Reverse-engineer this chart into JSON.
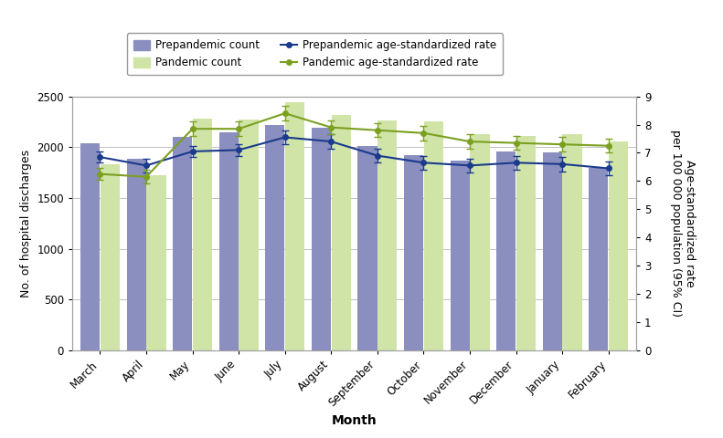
{
  "months": [
    "March",
    "April",
    "May",
    "June",
    "July",
    "August",
    "September",
    "October",
    "November",
    "December",
    "January",
    "February"
  ],
  "prepandemic_count": [
    2040,
    1890,
    2105,
    2145,
    2215,
    2195,
    2010,
    1920,
    1870,
    1960,
    1950,
    1800
  ],
  "pandemic_count": [
    1830,
    1720,
    2280,
    2270,
    2440,
    2320,
    2260,
    2250,
    2130,
    2110,
    2130,
    2060
  ],
  "prepandemic_rate": [
    6.85,
    6.55,
    7.05,
    7.1,
    7.55,
    7.4,
    6.9,
    6.65,
    6.55,
    6.65,
    6.6,
    6.45
  ],
  "prepandemic_rate_lower": [
    6.65,
    6.3,
    6.85,
    6.9,
    7.3,
    7.15,
    6.65,
    6.4,
    6.3,
    6.4,
    6.35,
    6.2
  ],
  "prepandemic_rate_upper": [
    7.05,
    6.8,
    7.25,
    7.3,
    7.8,
    7.65,
    7.15,
    6.9,
    6.8,
    6.9,
    6.85,
    6.7
  ],
  "pandemic_rate": [
    6.25,
    6.15,
    7.85,
    7.85,
    8.4,
    7.9,
    7.8,
    7.7,
    7.4,
    7.35,
    7.3,
    7.25
  ],
  "pandemic_rate_lower": [
    6.05,
    5.9,
    7.6,
    7.6,
    8.15,
    7.65,
    7.55,
    7.45,
    7.15,
    7.1,
    7.05,
    7.0
  ],
  "pandemic_rate_upper": [
    6.45,
    6.4,
    8.1,
    8.1,
    8.65,
    8.15,
    8.05,
    7.95,
    7.65,
    7.6,
    7.55,
    7.5
  ],
  "prepandemic_bar_color": "#8b8fbf",
  "pandemic_bar_color": "#d0e4a8",
  "prepandemic_line_color": "#1a3a8c",
  "pandemic_line_color": "#7ba020",
  "ylim_left": [
    0,
    2500
  ],
  "ylim_right": [
    0,
    9
  ],
  "yticks_left": [
    0,
    500,
    1000,
    1500,
    2000,
    2500
  ],
  "yticks_right": [
    0,
    1,
    2,
    3,
    4,
    5,
    6,
    7,
    8,
    9
  ],
  "ylabel_left": "No. of hospital discharges",
  "ylabel_right": "Age-standardized rate\nper 100 000 population (95% CI)",
  "xlabel": "Month",
  "legend_labels": [
    "Prepandemic count",
    "Pandemic count",
    "Prepandemic age-standardized rate",
    "Pandemic age-standardized rate"
  ],
  "background_color": "#ffffff",
  "grid_color": "#c0c0c0",
  "figure_width": 7.91,
  "figure_height": 4.8
}
